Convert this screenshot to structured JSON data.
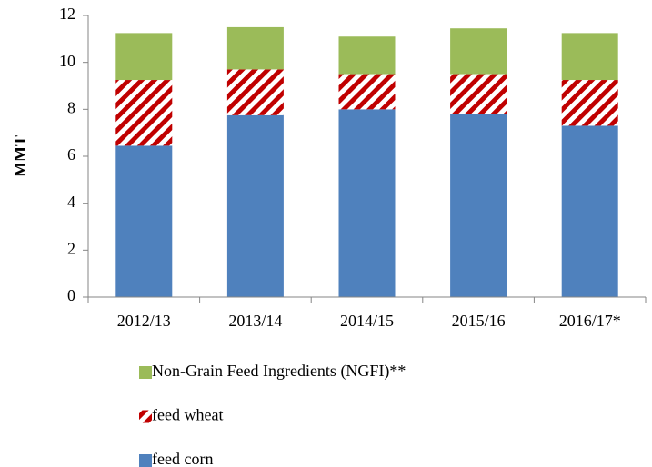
{
  "chart_data": {
    "type": "stacked_bar",
    "y_label": "MMT",
    "categories": [
      "2012/13",
      "2013/14",
      "2014/15",
      "2015/16",
      "2016/17*"
    ],
    "series": [
      {
        "name": "feed corn",
        "color": "#4f81bd",
        "values": [
          6.45,
          7.75,
          8.0,
          7.8,
          7.3
        ]
      },
      {
        "name": "feed wheat",
        "color": "#c00000",
        "hatch": true,
        "values": [
          2.8,
          1.95,
          1.5,
          1.7,
          1.95
        ]
      },
      {
        "name": "Non-Grain Feed Ingredients (NGFI)**",
        "color": "#9bbb59",
        "values": [
          2.0,
          1.8,
          1.6,
          1.95,
          2.0
        ]
      }
    ],
    "ylim": [
      0,
      12
    ],
    "yticks": [
      0,
      2,
      4,
      6,
      8,
      10,
      12
    ],
    "grid": false
  }
}
